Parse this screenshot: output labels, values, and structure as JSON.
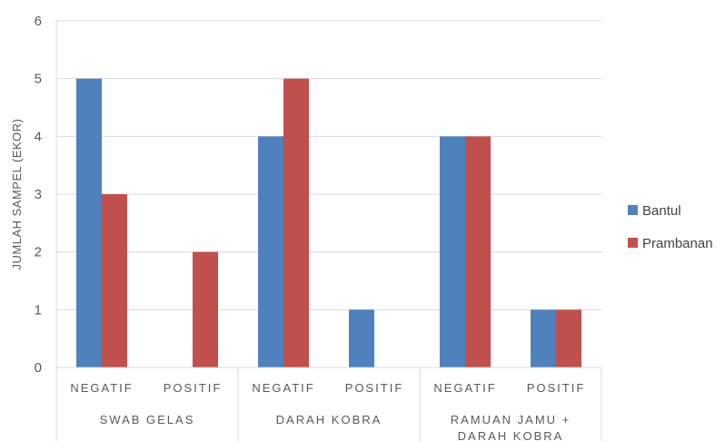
{
  "chart_data": {
    "type": "bar",
    "ylabel": "JUMLAH SAMPEL (EKOR)",
    "xlabel": "",
    "ylim": [
      0,
      6
    ],
    "yticks": [
      "0",
      "1",
      "2",
      "3",
      "4",
      "5",
      "6"
    ],
    "grid": true,
    "legend_position": "right",
    "groups": [
      {
        "label_lines": [
          "SWAB GELAS"
        ],
        "categories": [
          "NEGATIF",
          "POSITIF"
        ]
      },
      {
        "label_lines": [
          "DARAH KOBRA"
        ],
        "categories": [
          "NEGATIF",
          "POSITIF"
        ]
      },
      {
        "label_lines": [
          "RAMUAN JAMU +",
          "DARAH KOBRA"
        ],
        "categories": [
          "NEGATIF",
          "POSITIF"
        ]
      }
    ],
    "series": [
      {
        "name": "Bantul",
        "color": "#4F81BD",
        "values": [
          5,
          0,
          4,
          1,
          4,
          1
        ]
      },
      {
        "name": "Prambanan",
        "color": "#C0504D",
        "values": [
          3,
          2,
          5,
          0,
          4,
          1
        ]
      }
    ]
  }
}
